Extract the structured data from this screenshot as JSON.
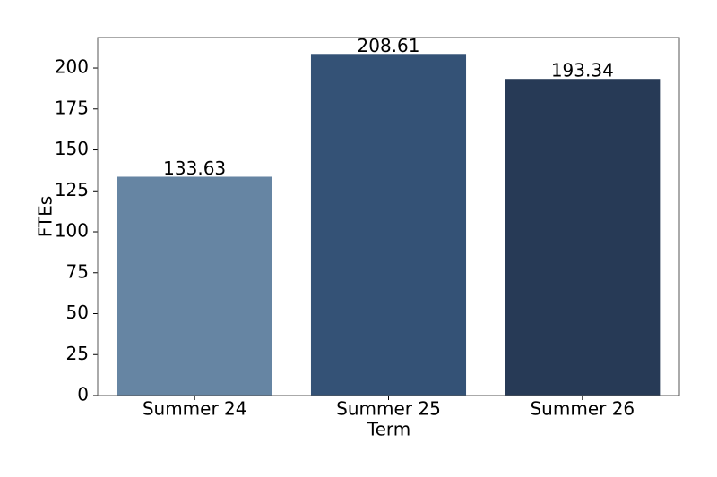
{
  "chart_data": {
    "type": "bar",
    "x_label": "Term",
    "y_label": "FTEs",
    "categories": [
      "Summer 24",
      "Summer 25",
      "Summer 26"
    ],
    "values": [
      133.63,
      208.61,
      193.34
    ],
    "colors": [
      "#6685a3",
      "#345276",
      "#273a56"
    ],
    "ylim": [
      0,
      218.6
    ],
    "yticks": [
      0,
      25,
      50,
      75,
      100,
      125,
      150,
      175,
      200
    ],
    "grid": false
  }
}
